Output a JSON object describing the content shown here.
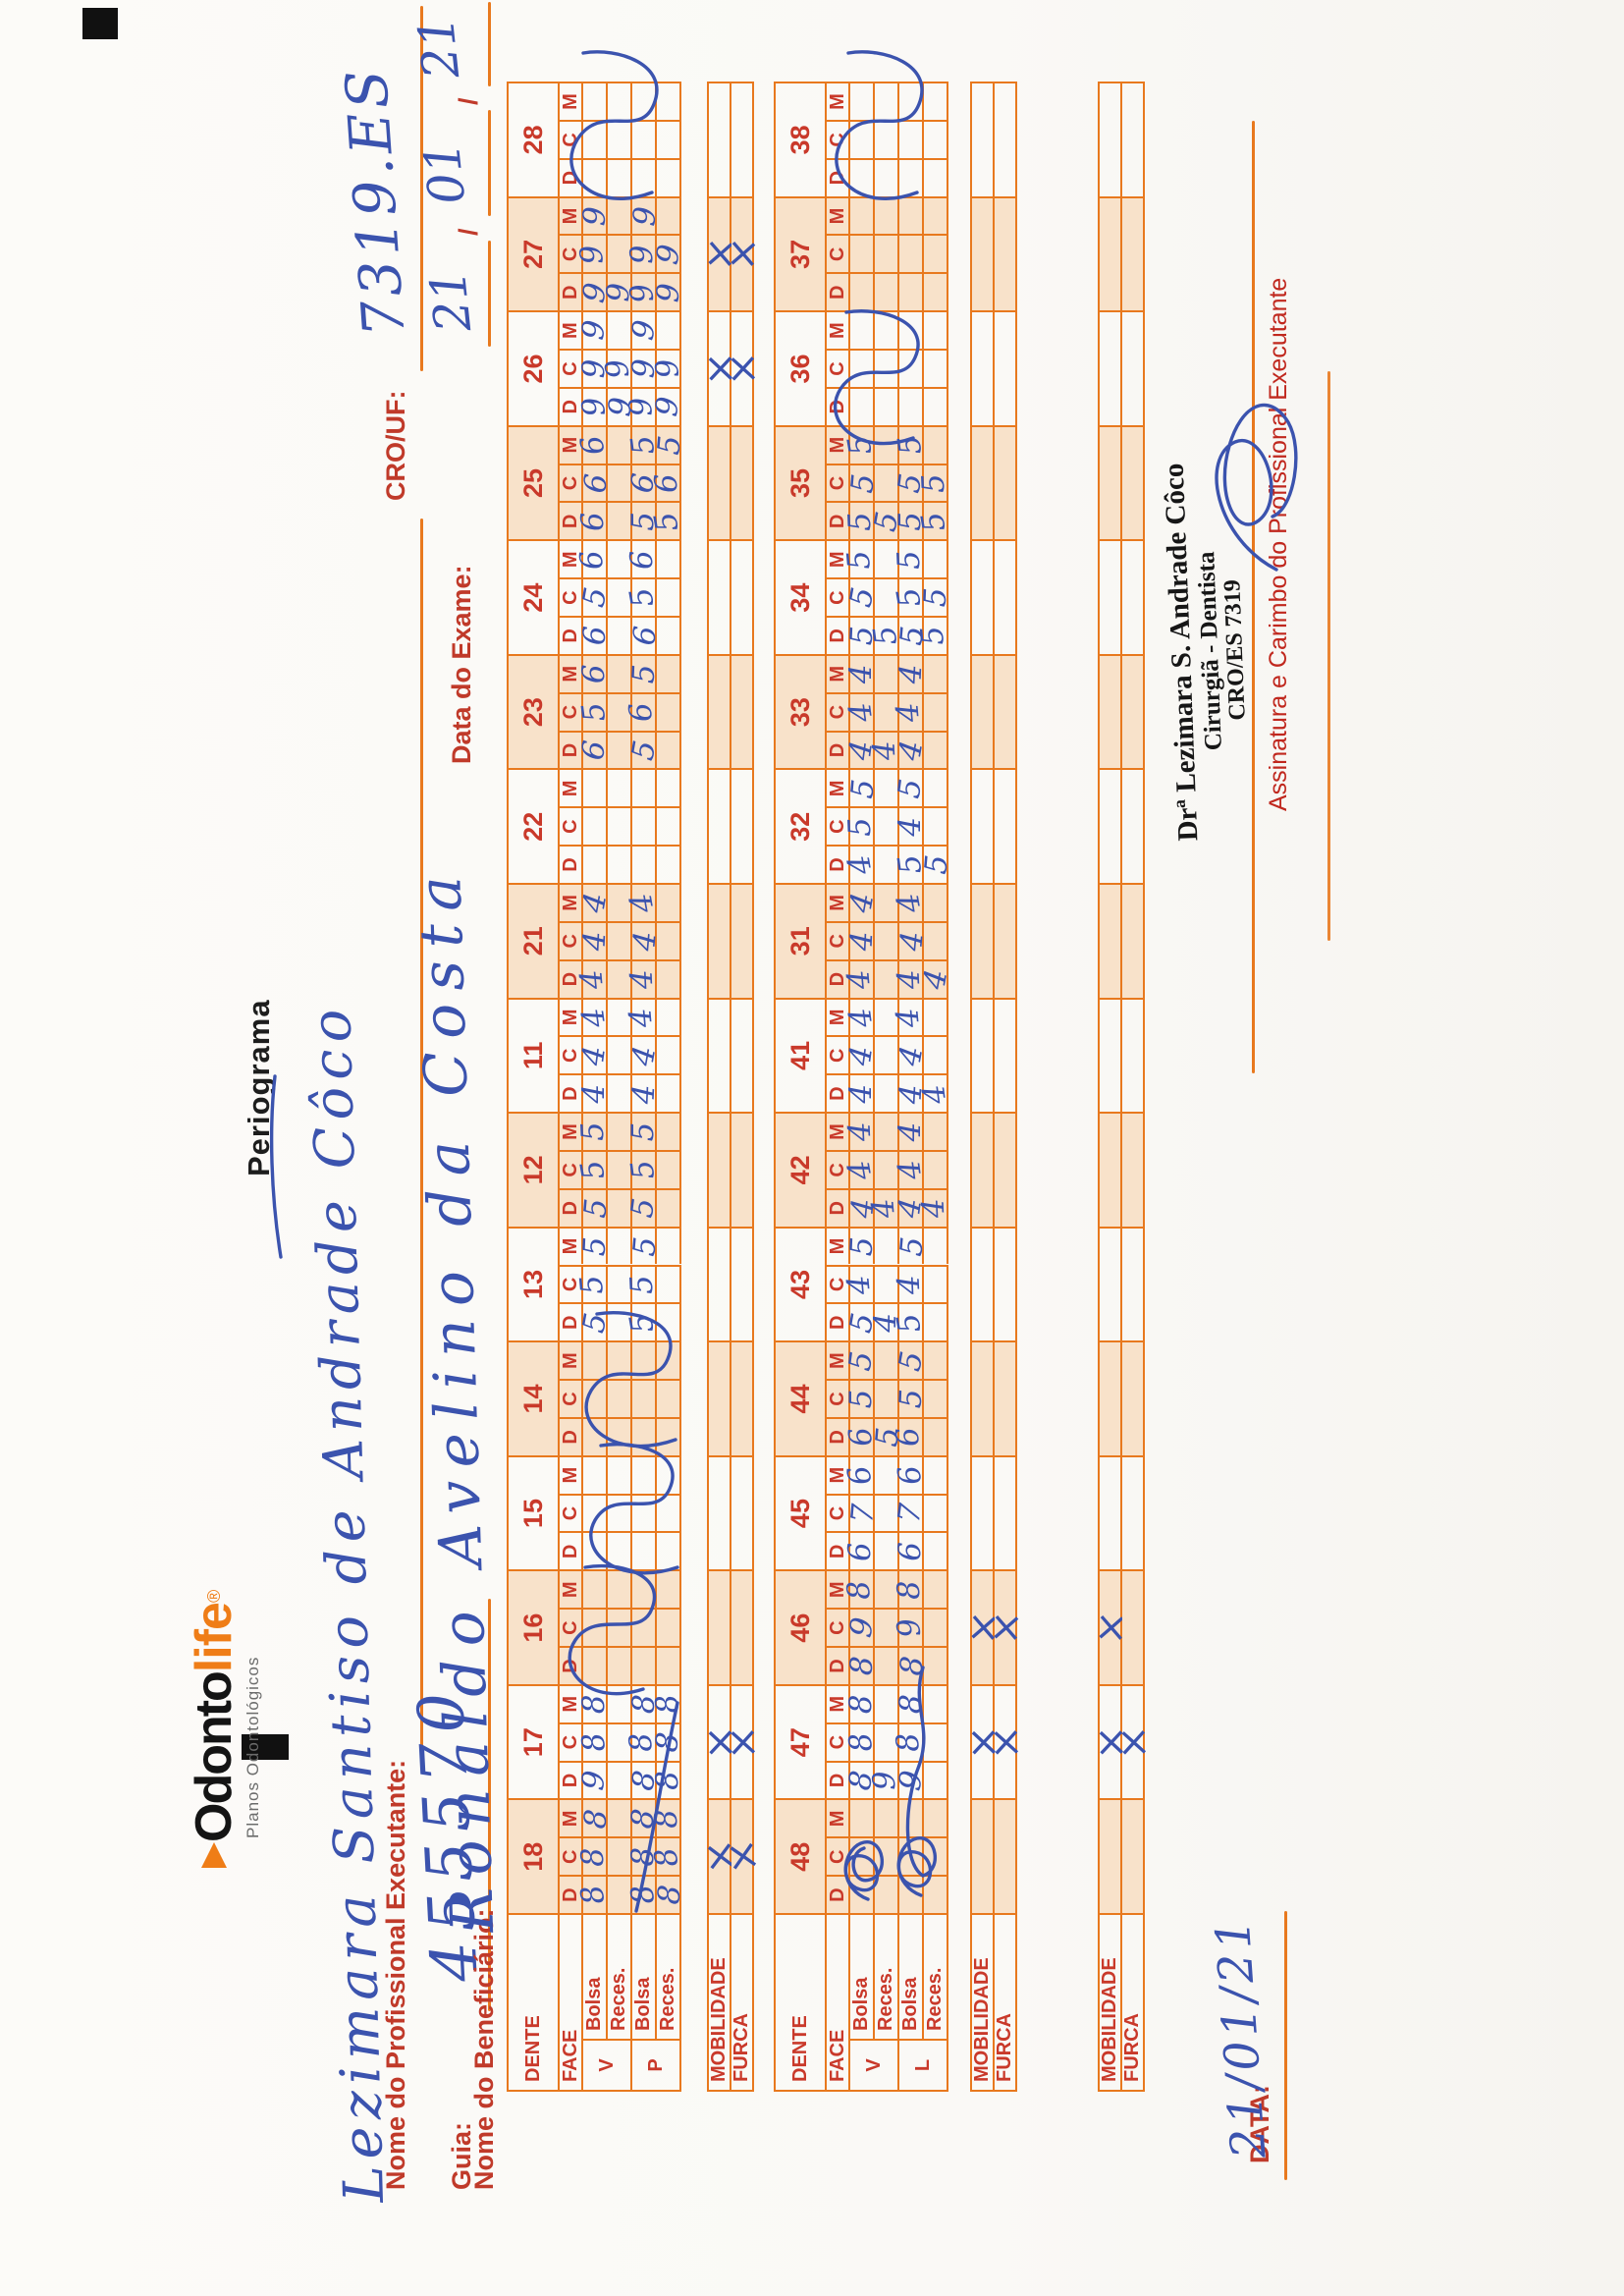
{
  "logo": {
    "odonto": "Odonto",
    "life": "life",
    "reg": "®",
    "subtitle": "Planos Odontológicos"
  },
  "title": "Periograma",
  "fields": {
    "prof_label": "Nome do Profissional Executante:",
    "prof_value": "Lezimara Santiso de Andrade Côco",
    "crouf_label": "CRO/UF:",
    "crouf_value": "7319.ES",
    "guia_label": "Guia:",
    "guia_value": "455570",
    "exame_label": "Data do Exame:",
    "exame_d": "21",
    "exame_m": "01",
    "exame_y": "21",
    "slash": "/",
    "benef_label": "Nome do Beneficiário:",
    "benef_value": "Ronaldo Avelino da Costa"
  },
  "table_labels": {
    "dente": "DENTE",
    "face": "FACE",
    "bolsa": "Bolsa",
    "reces": "Reces.",
    "v": "V",
    "p": "P",
    "l": "L",
    "mobilidade": "MOBILIDADE",
    "furca": "FURCA",
    "faces": [
      "D",
      "C",
      "M"
    ]
  },
  "upper": {
    "row_keys": [
      "Bolsa V",
      "Reces. V",
      "Bolsa P",
      "Reces. P"
    ],
    "teeth": [
      {
        "num": "18",
        "shaded": true,
        "rows": [
          "888",
          "",
          "888",
          "888"
        ],
        "flourish": false
      },
      {
        "num": "17",
        "shaded": false,
        "rows": [
          "988",
          "",
          "888",
          "888"
        ],
        "flourish": false
      },
      {
        "num": "16",
        "shaded": true,
        "rows": [
          "",
          "",
          "",
          ""
        ],
        "flourish": true
      },
      {
        "num": "15",
        "shaded": false,
        "rows": [
          "",
          "",
          "",
          ""
        ],
        "flourish": true
      },
      {
        "num": "14",
        "shaded": true,
        "rows": [
          "",
          "",
          "",
          ""
        ],
        "flourish": true
      },
      {
        "num": "13",
        "shaded": false,
        "rows": [
          "555",
          "",
          "555",
          ""
        ],
        "flourish": false
      },
      {
        "num": "12",
        "shaded": true,
        "rows": [
          "555",
          "",
          "555",
          ""
        ],
        "flourish": false
      },
      {
        "num": "11",
        "shaded": false,
        "rows": [
          "444",
          "",
          "444",
          ""
        ],
        "flourish": false
      },
      {
        "num": "21",
        "shaded": true,
        "rows": [
          "444",
          "",
          "444",
          ""
        ],
        "flourish": false
      },
      {
        "num": "22",
        "shaded": false,
        "rows": [
          "",
          "",
          "",
          ""
        ],
        "flourish": false
      },
      {
        "num": "23",
        "shaded": true,
        "rows": [
          "656",
          "",
          "565",
          ""
        ],
        "flourish": false
      },
      {
        "num": "24",
        "shaded": false,
        "rows": [
          "656",
          "",
          "656",
          ""
        ],
        "flourish": false
      },
      {
        "num": "25",
        "shaded": true,
        "rows": [
          "666",
          "",
          "565",
          "565"
        ],
        "flourish": false
      },
      {
        "num": "26",
        "shaded": false,
        "rows": [
          "999",
          "99",
          "999",
          "99"
        ],
        "flourish": false
      },
      {
        "num": "27",
        "shaded": true,
        "rows": [
          "999",
          "9",
          "999",
          "99"
        ],
        "flourish": false
      },
      {
        "num": "28",
        "shaded": false,
        "rows": [
          "",
          "",
          "",
          ""
        ],
        "flourish": true
      }
    ],
    "strips": [
      {
        "mob_marks": [
          "18",
          "17",
          "26",
          "27"
        ],
        "furca_marks": [
          "18",
          "17",
          "26",
          "27"
        ]
      }
    ]
  },
  "lower": {
    "row_keys": [
      "Bolsa V",
      "Reces. V",
      "Bolsa L",
      "Reces. L"
    ],
    "teeth": [
      {
        "num": "48",
        "shaded": true,
        "rows": [
          "",
          "",
          "",
          ""
        ],
        "flourish": false
      },
      {
        "num": "47",
        "shaded": false,
        "rows": [
          "888",
          "9",
          "988",
          ""
        ],
        "flourish": false
      },
      {
        "num": "46",
        "shaded": true,
        "rows": [
          "898",
          "",
          "898",
          ""
        ],
        "flourish": false
      },
      {
        "num": "45",
        "shaded": false,
        "rows": [
          "676",
          "",
          "676",
          ""
        ],
        "flourish": false
      },
      {
        "num": "44",
        "shaded": true,
        "rows": [
          "655",
          "5",
          "655",
          ""
        ],
        "flourish": false
      },
      {
        "num": "43",
        "shaded": false,
        "rows": [
          "545",
          "4",
          "545",
          ""
        ],
        "flourish": false
      },
      {
        "num": "42",
        "shaded": true,
        "rows": [
          "444",
          "4",
          "444",
          "4"
        ],
        "flourish": false
      },
      {
        "num": "41",
        "shaded": false,
        "rows": [
          "444",
          "",
          "444",
          "4"
        ],
        "flourish": false
      },
      {
        "num": "31",
        "shaded": true,
        "rows": [
          "444",
          "",
          "444",
          "4"
        ],
        "flourish": false
      },
      {
        "num": "32",
        "shaded": false,
        "rows": [
          "455",
          "",
          "545",
          "5"
        ],
        "flourish": false
      },
      {
        "num": "33",
        "shaded": true,
        "rows": [
          "444",
          "4",
          "444",
          ""
        ],
        "flourish": false
      },
      {
        "num": "34",
        "shaded": false,
        "rows": [
          "555",
          "5",
          "555",
          "55"
        ],
        "flourish": false
      },
      {
        "num": "35",
        "shaded": true,
        "rows": [
          "555",
          "5",
          "555",
          "55"
        ],
        "flourish": false
      },
      {
        "num": "36",
        "shaded": false,
        "rows": [
          "",
          "",
          "",
          ""
        ],
        "flourish": true
      },
      {
        "num": "37",
        "shaded": true,
        "rows": [
          "",
          "",
          "",
          ""
        ],
        "flourish": false
      },
      {
        "num": "38",
        "shaded": false,
        "rows": [
          "",
          "",
          "",
          ""
        ],
        "flourish": true
      }
    ],
    "strips": [
      {
        "mob_marks": [
          "47",
          "46"
        ],
        "furca_marks": [
          "47",
          "46"
        ]
      },
      {
        "mob_marks": [
          "47",
          "46"
        ],
        "furca_marks": [
          "47"
        ]
      }
    ]
  },
  "footer": {
    "data_label": "DATA:",
    "data_value": "21/01/21",
    "assinatura_caption": "Assinatura e Carimbo do Profissional Executante",
    "stamp_line1": "Drª Lezimara S. Andrade Côco",
    "stamp_line2": "Cirurgiã - Dentista",
    "stamp_line3": "CRO/ES 7319"
  },
  "colors": {
    "grid": "#e8791e",
    "shade": "#f8e2ca",
    "label_red": "#c03a2a",
    "ink_blue": "#3b53ae",
    "stamp_black": "#161616"
  }
}
